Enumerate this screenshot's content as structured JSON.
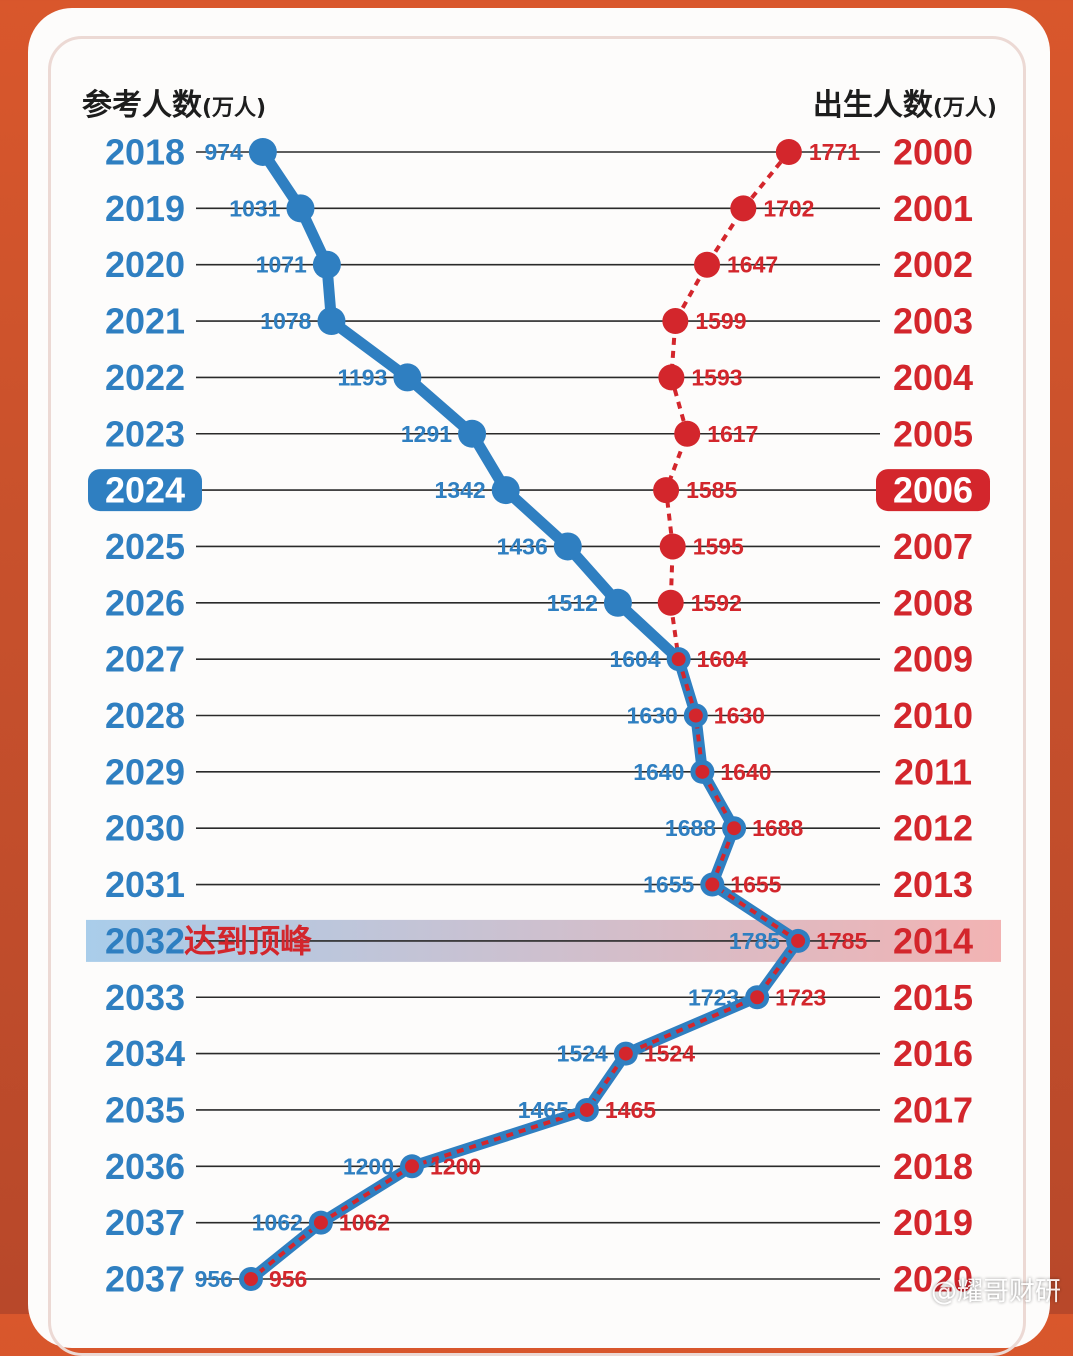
{
  "header_left": {
    "title": "参考人数",
    "unit": "(万人)"
  },
  "header_right": {
    "title": "出生人数",
    "unit": "(万人)"
  },
  "peak_label": "达到顶峰",
  "watermark": "@耀哥财研",
  "colors": {
    "blue": "#2f7fc1",
    "red": "#d3262c",
    "dark_line": "#6b4a6e",
    "highlight_left": "#a9cdea",
    "highlight_right": "#f2b3b3"
  },
  "chart_data": {
    "type": "line",
    "title": "",
    "highlight_exam_year": "2024",
    "highlight_birth_year": "2006",
    "peak_exam_year": "2032",
    "exam_years": [
      "2018",
      "2019",
      "2020",
      "2021",
      "2022",
      "2023",
      "2024",
      "2025",
      "2026",
      "2027",
      "2028",
      "2029",
      "2030",
      "2031",
      "2032",
      "2033",
      "2034",
      "2035",
      "2036",
      "2037",
      "2037"
    ],
    "birth_years": [
      "2000",
      "2001",
      "2002",
      "2003",
      "2004",
      "2005",
      "2006",
      "2007",
      "2008",
      "2009",
      "2010",
      "2011",
      "2012",
      "2013",
      "2014",
      "2015",
      "2016",
      "2017",
      "2018",
      "2019",
      "2020"
    ],
    "series": [
      {
        "name": "参考人数",
        "values": [
          974,
          1031,
          1071,
          1078,
          1193,
          1291,
          1342,
          1436,
          1512,
          1604,
          1630,
          1640,
          1688,
          1655,
          1785,
          1723,
          1524,
          1465,
          1200,
          1062,
          956
        ],
        "labels": [
          "974",
          "1031",
          "1071",
          "1078",
          "1193",
          "1291",
          "1342",
          "1436",
          "1512",
          "1604",
          "1630",
          "1640",
          "1688",
          "1655",
          "1785",
          "1723",
          "1524",
          "1465",
          "1200",
          "1062",
          "956"
        ]
      },
      {
        "name": "出生人数",
        "values": [
          1771,
          1702,
          1647,
          1599,
          1593,
          1617,
          1585,
          1595,
          1592,
          1604,
          1630,
          1640,
          1688,
          1655,
          1785,
          1723,
          1524,
          1465,
          1200,
          1062,
          956
        ],
        "labels": [
          "1771",
          "1702",
          "1647",
          "1599",
          "1593",
          "1617",
          "1585",
          "1595",
          "1592",
          "1604",
          "1630",
          "1640",
          "1688",
          "1655",
          "1785",
          "1723",
          "1524",
          "1465",
          "1200",
          "1062",
          "956"
        ]
      }
    ],
    "xlim": [
      900,
      1800
    ],
    "unit": "万人"
  }
}
